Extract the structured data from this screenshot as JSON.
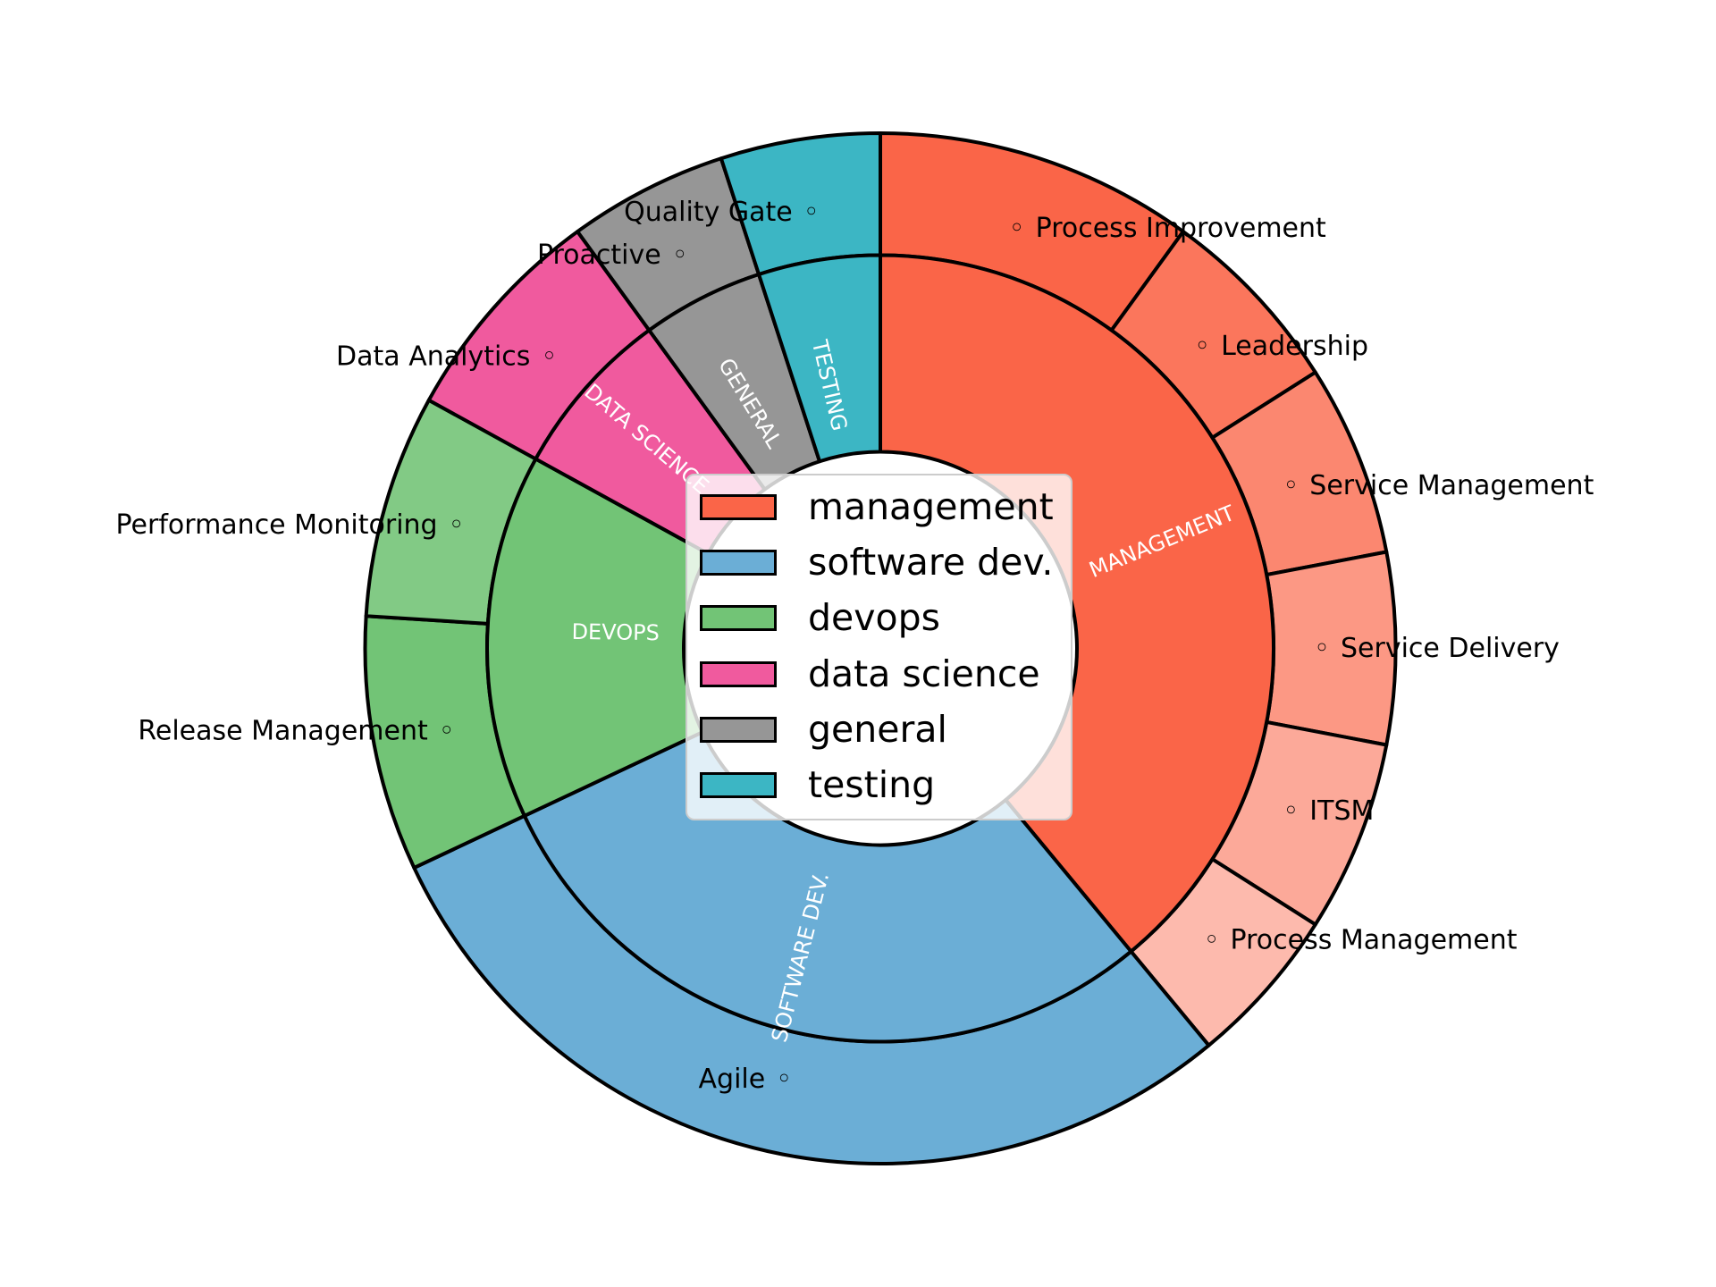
{
  "chart_data": {
    "type": "sunburst",
    "marker_char": "◦",
    "background": "#ffffff",
    "edge_color": "#000000",
    "shade_step": 0.11,
    "total": 100,
    "legend": {
      "position": "center",
      "entries": [
        "management",
        "software dev.",
        "devops",
        "data science",
        "general",
        "testing"
      ]
    },
    "categories": [
      {
        "name": "management",
        "inner_label": "MANAGEMENT",
        "color": "#FA6548",
        "value": 39,
        "children": [
          {
            "label": "Process Improvement",
            "value": 10
          },
          {
            "label": "Leadership",
            "value": 6
          },
          {
            "label": "Service Management",
            "value": 6
          },
          {
            "label": "Service Delivery",
            "value": 6
          },
          {
            "label": "ITSM",
            "value": 6
          },
          {
            "label": "Process Management",
            "value": 5
          }
        ]
      },
      {
        "name": "software dev.",
        "inner_label": "SOFTWARE DEV.",
        "color": "#6BAED6",
        "value": 29,
        "children": [
          {
            "label": "Agile",
            "value": 29
          }
        ]
      },
      {
        "name": "devops",
        "inner_label": "DEVOPS",
        "color": "#72C476",
        "value": 15,
        "children": [
          {
            "label": "Release Management",
            "value": 8
          },
          {
            "label": "Performance Monitoring",
            "value": 7
          }
        ]
      },
      {
        "name": "data science",
        "inner_label": "DATA SCIENCE",
        "color": "#F05A9E",
        "value": 7,
        "children": [
          {
            "label": "Data Analytics",
            "value": 7
          }
        ]
      },
      {
        "name": "general",
        "inner_label": "GENERAL",
        "color": "#969696",
        "value": 5,
        "children": [
          {
            "label": "Proactive",
            "value": 5
          }
        ]
      },
      {
        "name": "testing",
        "inner_label": "TESTING",
        "color": "#3CB6C4",
        "value": 5,
        "children": [
          {
            "label": "Quality Gate",
            "value": 5
          }
        ]
      }
    ]
  }
}
